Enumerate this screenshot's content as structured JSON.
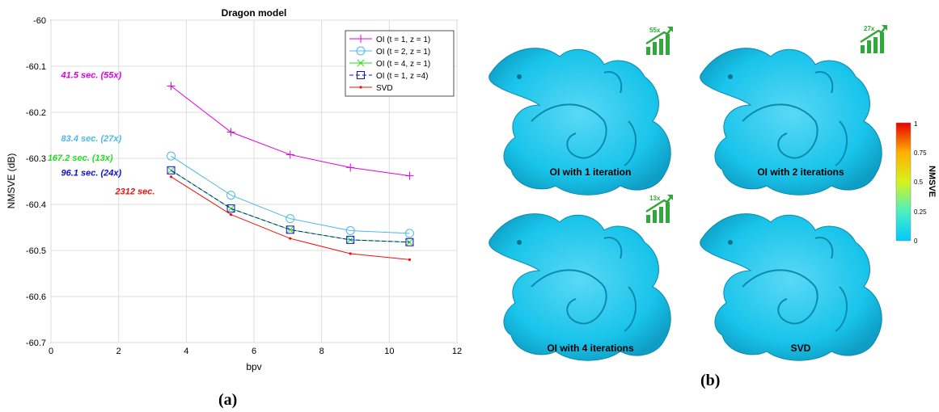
{
  "chart_data": {
    "type": "line",
    "title": "Dragon model",
    "xlabel": "bpv",
    "ylabel": "NMSVE (dB)",
    "xlim": [
      0,
      12
    ],
    "ylim": [
      -60.7,
      -60
    ],
    "xticks": [
      "0",
      "2",
      "4",
      "6",
      "8",
      "10",
      "12"
    ],
    "yticks": [
      "-60",
      "-60.1",
      "-60.2",
      "-60.3",
      "-60.4",
      "-60.5",
      "-60.6",
      "-60.7"
    ],
    "grid": true,
    "legend_position": "top-right",
    "x": [
      3.55,
      5.32,
      7.07,
      8.85,
      10.6
    ],
    "series": [
      {
        "name": "OI (t = 1, z = 1)",
        "color": "#e000e0",
        "marker": "plus",
        "values": [
          -60.143,
          -60.243,
          -60.292,
          -60.32,
          -60.338
        ]
      },
      {
        "name": "OI (t = 2, z = 1)",
        "color": "#4db8e8",
        "marker": "circle",
        "values": [
          -60.295,
          -60.38,
          -60.431,
          -60.457,
          -60.463
        ]
      },
      {
        "name": "OI (t = 4, z = 1)",
        "color": "#22dd22",
        "marker": "x",
        "values": [
          -60.326,
          -60.409,
          -60.455,
          -60.477,
          -60.482
        ]
      },
      {
        "name": "OI (t = 1, z =4)",
        "color": "#1010c8",
        "marker": "square",
        "dashed": true,
        "values": [
          -60.326,
          -60.409,
          -60.455,
          -60.477,
          -60.482
        ]
      },
      {
        "name": "SVD",
        "color": "#ee1111",
        "marker": "dot",
        "values": [
          -60.34,
          -60.422,
          -60.474,
          -60.507,
          -60.52
        ]
      }
    ],
    "annotations": [
      {
        "text": "41.5 sec. (55x)",
        "color": "#e000e0",
        "x": 0.3,
        "y": -60.125
      },
      {
        "text": "83.4 sec. (27x)",
        "color": "#4db8e8",
        "x": 0.3,
        "y": -60.263
      },
      {
        "text": "167.2 sec. (13x)",
        "color": "#22dd22",
        "x": -0.1,
        "y": -60.305
      },
      {
        "text": "96.1 sec. (24x)",
        "color": "#1010c8",
        "x": 0.3,
        "y": -60.338
      },
      {
        "text": "2312 sec.",
        "color": "#ee1111",
        "x": 1.9,
        "y": -60.378
      }
    ]
  },
  "panel_a_label": "(a)",
  "panel_b_label": "(b)",
  "renders": [
    {
      "caption": "OI with 1 iteration",
      "speedup": "55x"
    },
    {
      "caption": "OI with 2 iterations",
      "speedup": "27x"
    },
    {
      "caption": "OI with 4 iterations",
      "speedup": "13x"
    },
    {
      "caption": "SVD",
      "speedup": ""
    }
  ],
  "colorbar": {
    "title": "NMSVE",
    "ticks": [
      "1",
      "0.75",
      "0.5",
      "0.25",
      "0"
    ]
  },
  "colors": {
    "mesh": "#19c4ea",
    "accent_green": "#2faa3a"
  }
}
